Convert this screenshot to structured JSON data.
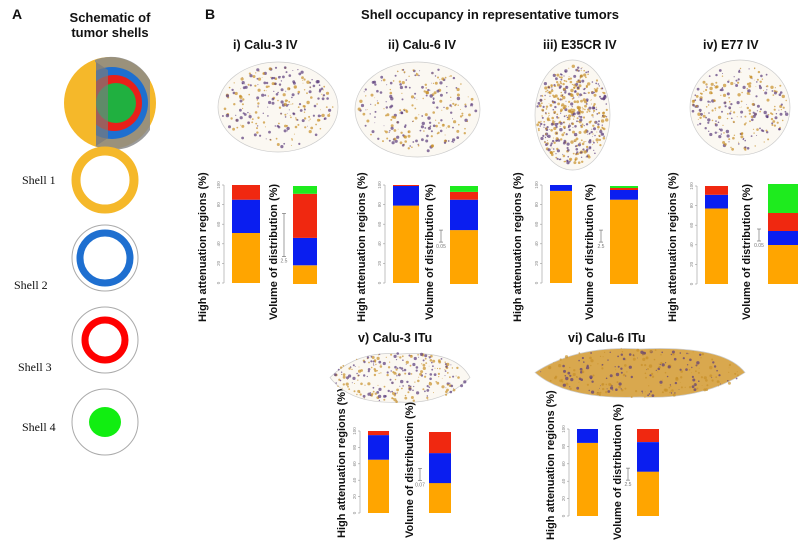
{
  "panel_a": {
    "label": "A",
    "title": "Schematic of tumor shells",
    "shells": [
      "Shell 1",
      "Shell 2",
      "Shell 3",
      "Shell 4"
    ]
  },
  "panel_b": {
    "label": "B",
    "title": "Shell occupancy in representative tumors"
  },
  "colors": {
    "shell1": "#FFA500",
    "shell2": "#0A1EF0",
    "shell3": "#F02810",
    "shell4": "#1EEB1E",
    "tissue": "#C8902A",
    "dots": "#5A3A7A"
  },
  "axis_labels": {
    "har": "High attenuation regions (%)",
    "vod": "Volume of distribution (%)"
  },
  "chart_data": [
    {
      "type": "bar",
      "title": "i) Calu-3 IV",
      "stacked": true,
      "series_order": [
        "Shell 1",
        "Shell 2",
        "Shell 3",
        "Shell 4"
      ],
      "har": [
        51,
        34,
        15,
        0
      ],
      "vod": [
        19,
        28,
        45,
        8
      ],
      "scale_label": "2.5",
      "yticks": [
        0,
        20,
        40,
        60,
        80,
        100
      ],
      "ylim": [
        0,
        100
      ]
    },
    {
      "type": "bar",
      "title": "ii) Calu-6 IV",
      "stacked": true,
      "series_order": [
        "Shell 1",
        "Shell 2",
        "Shell 3",
        "Shell 4"
      ],
      "har": [
        79,
        20,
        1,
        0
      ],
      "vod": [
        55,
        31,
        8,
        6
      ],
      "scale_label": "0.05",
      "yticks": [
        0,
        20,
        40,
        60,
        80,
        100
      ],
      "ylim": [
        0,
        100
      ]
    },
    {
      "type": "bar",
      "title": "iii) E35CR IV",
      "stacked": true,
      "series_order": [
        "Shell 1",
        "Shell 2",
        "Shell 3",
        "Shell 4"
      ],
      "har": [
        94,
        6,
        0,
        0
      ],
      "vod": [
        86,
        10,
        2,
        2
      ],
      "scale_label": "2.5",
      "yticks": [
        0,
        20,
        40,
        60,
        80,
        100
      ],
      "ylim": [
        0,
        100
      ]
    },
    {
      "type": "bar",
      "title": "iv) E77 IV",
      "stacked": true,
      "series_order": [
        "Shell 1",
        "Shell 2",
        "Shell 3",
        "Shell 4"
      ],
      "har": [
        77,
        14,
        9,
        0
      ],
      "vod": [
        39,
        14,
        18,
        29
      ],
      "scale_label": "0.05",
      "yticks": [
        0,
        20,
        40,
        60,
        80,
        100
      ],
      "ylim": [
        0,
        100
      ]
    },
    {
      "type": "bar",
      "title": "v) Calu-3 ITu",
      "stacked": true,
      "series_order": [
        "Shell 1",
        "Shell 2",
        "Shell 3",
        "Shell 4"
      ],
      "har": [
        65,
        30,
        5,
        0
      ],
      "vod": [
        37,
        37,
        26,
        0
      ],
      "scale_label": "0.07",
      "yticks": [
        0,
        20,
        40,
        60,
        80,
        100
      ],
      "ylim": [
        0,
        100
      ]
    },
    {
      "type": "bar",
      "title": "vi) Calu-6 ITu",
      "stacked": true,
      "series_order": [
        "Shell 1",
        "Shell 2",
        "Shell 3",
        "Shell 4"
      ],
      "har": [
        84,
        16,
        0,
        0
      ],
      "vod": [
        51,
        34,
        15,
        0
      ],
      "scale_label": "2.5",
      "yticks": [
        0,
        20,
        40,
        60,
        80,
        100
      ],
      "ylim": [
        0,
        100
      ]
    }
  ]
}
